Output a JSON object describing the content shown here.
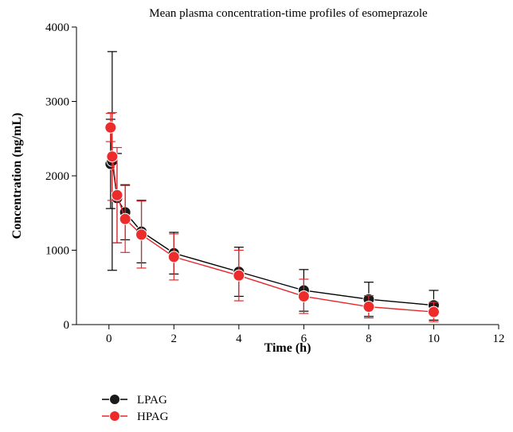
{
  "chart_data": {
    "type": "line",
    "title": "Mean plasma concentration-time profiles of esomeprazole",
    "xlabel": "Time (h)",
    "ylabel": "Concentration (ng/mL)",
    "xlim": [
      -1,
      12
    ],
    "ylim": [
      0,
      4000
    ],
    "xticks": [
      0,
      2,
      4,
      6,
      8,
      10,
      12
    ],
    "yticks": [
      0,
      1000,
      2000,
      3000,
      4000
    ],
    "grid": false,
    "legend_position": "bottom-left",
    "series": [
      {
        "name": "LPAG",
        "color": "#1a1a1a",
        "line_color": "#000000",
        "x": [
          0.05,
          0.1,
          0.25,
          0.5,
          1,
          2,
          4,
          6,
          8,
          10
        ],
        "y": [
          2160,
          2200,
          1700,
          1510,
          1250,
          960,
          710,
          460,
          340,
          260
        ],
        "err": [
          600,
          1470,
          600,
          370,
          420,
          280,
          330,
          280,
          230,
          200
        ]
      },
      {
        "name": "HPAG",
        "color": "#ee2b2b",
        "line_color": "#e8262a",
        "x": [
          0.05,
          0.1,
          0.25,
          0.5,
          1,
          2,
          4,
          6,
          8,
          10
        ],
        "y": [
          2650,
          2260,
          1740,
          1420,
          1210,
          910,
          660,
          380,
          240,
          170
        ],
        "err": [
          190,
          590,
          640,
          450,
          450,
          310,
          340,
          230,
          150,
          130
        ]
      }
    ]
  }
}
